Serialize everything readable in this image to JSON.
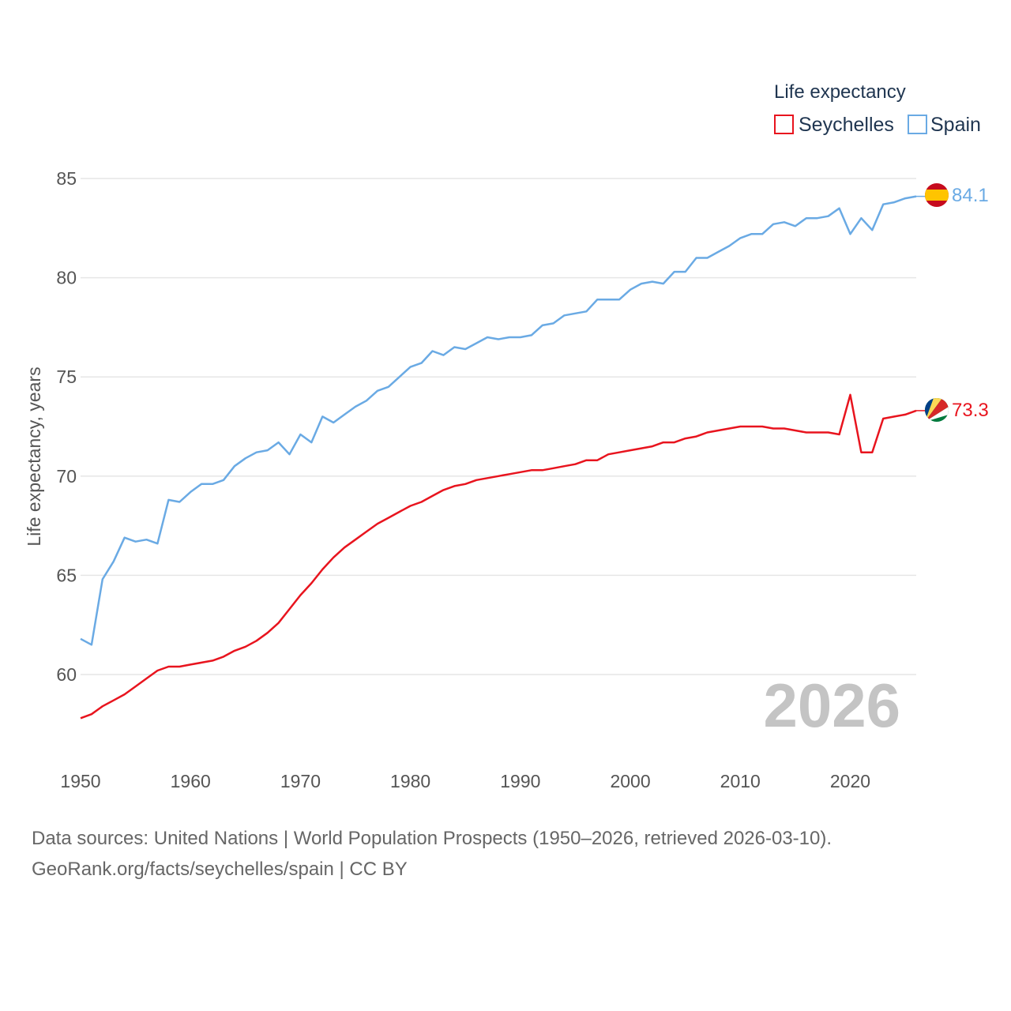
{
  "chart_data": {
    "type": "line",
    "title": "",
    "legend_title": "Life expectancy",
    "xlabel": "",
    "ylabel": "Life expectancy, years",
    "xlim": [
      1950,
      2026
    ],
    "ylim": [
      57,
      86
    ],
    "x_ticks": [
      1950,
      1960,
      1970,
      1980,
      1990,
      2000,
      2010,
      2020
    ],
    "y_ticks": [
      60,
      65,
      70,
      75,
      80,
      85
    ],
    "grid": true,
    "legend_position": "top-right",
    "current_year_label": "2026",
    "x": [
      1950,
      1951,
      1952,
      1953,
      1954,
      1955,
      1956,
      1957,
      1958,
      1959,
      1960,
      1961,
      1962,
      1963,
      1964,
      1965,
      1966,
      1967,
      1968,
      1969,
      1970,
      1971,
      1972,
      1973,
      1974,
      1975,
      1976,
      1977,
      1978,
      1979,
      1980,
      1981,
      1982,
      1983,
      1984,
      1985,
      1986,
      1987,
      1988,
      1989,
      1990,
      1991,
      1992,
      1993,
      1994,
      1995,
      1996,
      1997,
      1998,
      1999,
      2000,
      2001,
      2002,
      2003,
      2004,
      2005,
      2006,
      2007,
      2008,
      2009,
      2010,
      2011,
      2012,
      2013,
      2014,
      2015,
      2016,
      2017,
      2018,
      2019,
      2020,
      2021,
      2022,
      2023,
      2024,
      2025,
      2026
    ],
    "series": [
      {
        "name": "Seychelles",
        "color": "#e8141e",
        "end_label": "73.3",
        "flag": "seychelles-flag",
        "values": [
          57.8,
          58.0,
          58.4,
          58.7,
          59.0,
          59.4,
          59.8,
          60.2,
          60.4,
          60.4,
          60.5,
          60.6,
          60.7,
          60.9,
          61.2,
          61.4,
          61.7,
          62.1,
          62.6,
          63.3,
          64.0,
          64.6,
          65.3,
          65.9,
          66.4,
          66.8,
          67.2,
          67.6,
          67.9,
          68.2,
          68.5,
          68.7,
          69.0,
          69.3,
          69.5,
          69.6,
          69.8,
          69.9,
          70.0,
          70.1,
          70.2,
          70.3,
          70.3,
          70.4,
          70.5,
          70.6,
          70.8,
          70.8,
          71.1,
          71.2,
          71.3,
          71.4,
          71.5,
          71.7,
          71.7,
          71.9,
          72.0,
          72.2,
          72.3,
          72.4,
          72.5,
          72.5,
          72.5,
          72.4,
          72.4,
          72.3,
          72.2,
          72.2,
          72.2,
          72.1,
          74.1,
          71.2,
          71.2,
          72.9,
          73.0,
          73.1,
          73.3
        ]
      },
      {
        "name": "Spain",
        "color": "#6aaae4",
        "end_label": "84.1",
        "flag": "spain-flag",
        "values": [
          61.8,
          61.5,
          64.8,
          65.7,
          66.9,
          66.7,
          66.8,
          66.6,
          68.8,
          68.7,
          69.2,
          69.6,
          69.6,
          69.8,
          70.5,
          70.9,
          71.2,
          71.3,
          71.7,
          71.1,
          72.1,
          71.7,
          73.0,
          72.7,
          73.1,
          73.5,
          73.8,
          74.3,
          74.5,
          75.0,
          75.5,
          75.7,
          76.3,
          76.1,
          76.5,
          76.4,
          76.7,
          77.0,
          76.9,
          77.0,
          77.0,
          77.1,
          77.6,
          77.7,
          78.1,
          78.2,
          78.3,
          78.9,
          78.9,
          78.9,
          79.4,
          79.7,
          79.8,
          79.7,
          80.3,
          80.3,
          81.0,
          81.0,
          81.3,
          81.6,
          82.0,
          82.2,
          82.2,
          82.7,
          82.8,
          82.6,
          83.0,
          83.0,
          83.1,
          83.5,
          82.2,
          83.0,
          82.4,
          83.7,
          83.8,
          84.0,
          84.1
        ]
      }
    ]
  },
  "footer": {
    "line1": "Data sources: United Nations | World Population Prospects (1950–2026, retrieved 2026-03-10).",
    "line2": "GeoRank.org/facts/seychelles/spain | CC BY"
  }
}
